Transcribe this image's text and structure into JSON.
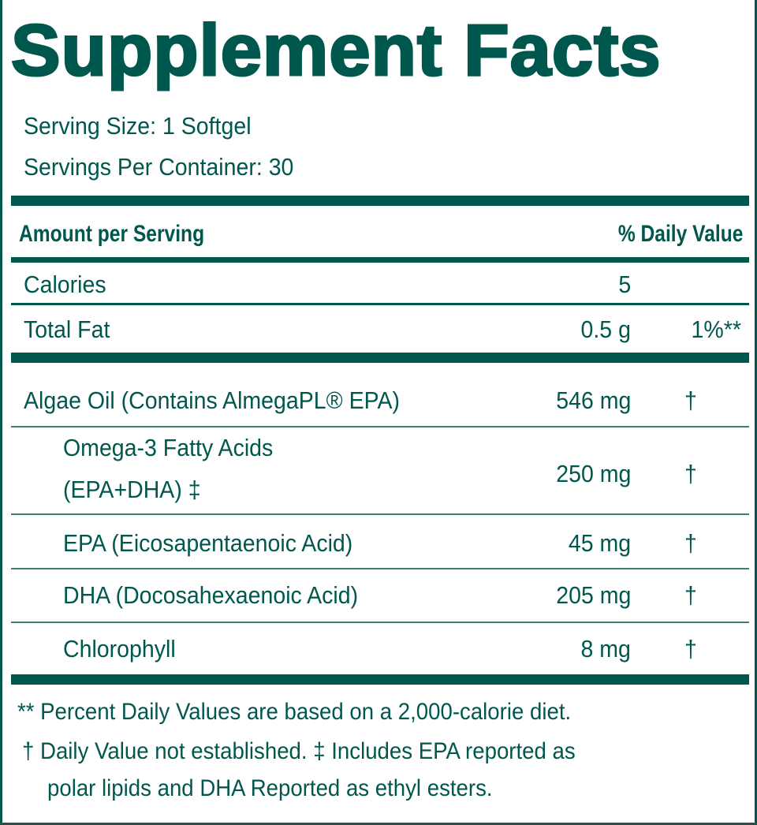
{
  "title": "Supplement Facts",
  "serving_size": "Serving Size: 1 Softgel",
  "servings_per_container": "Servings Per Container: 30",
  "header": {
    "amount": "Amount per Serving",
    "dv": "% Daily Value"
  },
  "rows": [
    {
      "name": "Calories",
      "amount": "5",
      "dv": ""
    },
    {
      "name": "Total Fat",
      "amount": "0.5 g",
      "dv": "1%**"
    },
    {
      "name": "Algae Oil (Contains AlmegaPL® EPA)",
      "amount": "546 mg",
      "dv": "†"
    },
    {
      "name": "Omega-3 Fatty Acids",
      "name2": "(EPA+DHA) ‡",
      "amount": "250 mg",
      "dv": "†"
    },
    {
      "name": "EPA (Eicosapentaenoic Acid)",
      "amount": "45 mg",
      "dv": "†"
    },
    {
      "name": "DHA (Docosahexaenoic Acid)",
      "amount": "205 mg",
      "dv": "†"
    },
    {
      "name": "Chlorophyll",
      "amount": "8 mg",
      "dv": "†"
    }
  ],
  "footnotes": [
    "** Percent Daily Values are based on a 2,000-calorie diet.",
    "† Daily Value not established.  ‡ Includes EPA reported as",
    "polar lipids and DHA Reported as ethyl esters."
  ],
  "colors": {
    "ink": "#00574d"
  }
}
